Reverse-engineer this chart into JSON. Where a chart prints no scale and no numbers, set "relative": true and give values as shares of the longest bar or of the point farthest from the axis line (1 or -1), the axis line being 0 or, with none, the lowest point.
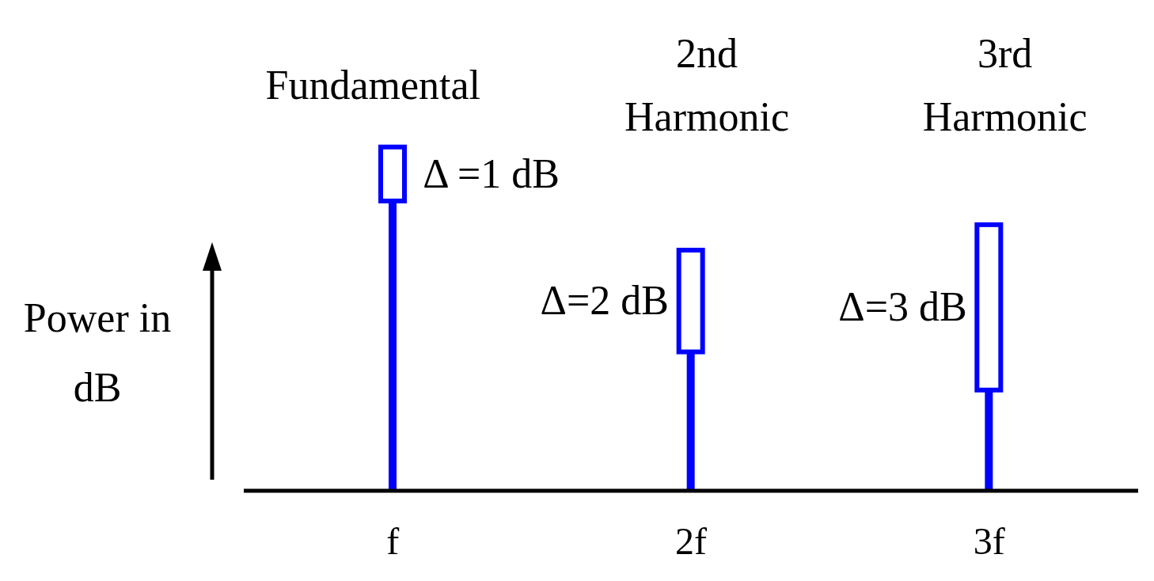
{
  "chart_data": {
    "type": "bar",
    "relative": true,
    "stacked": true,
    "categories": [
      "f",
      "2f",
      "3f"
    ],
    "series": [
      {
        "color": "#0000ff",
        "values": [
          0.843,
          0.404,
          0.293
        ]
      },
      {
        "color": "#0000ff",
        "values": [
          0.157,
          0.296,
          0.481
        ]
      }
    ],
    "ylabel": "Power in dB",
    "annotations": [
      "Fundamental",
      "2nd Harmonic",
      "3rd Harmonic",
      "Δ =1 dB",
      "Δ=2 dB",
      "Δ=3 dB"
    ]
  }
}
